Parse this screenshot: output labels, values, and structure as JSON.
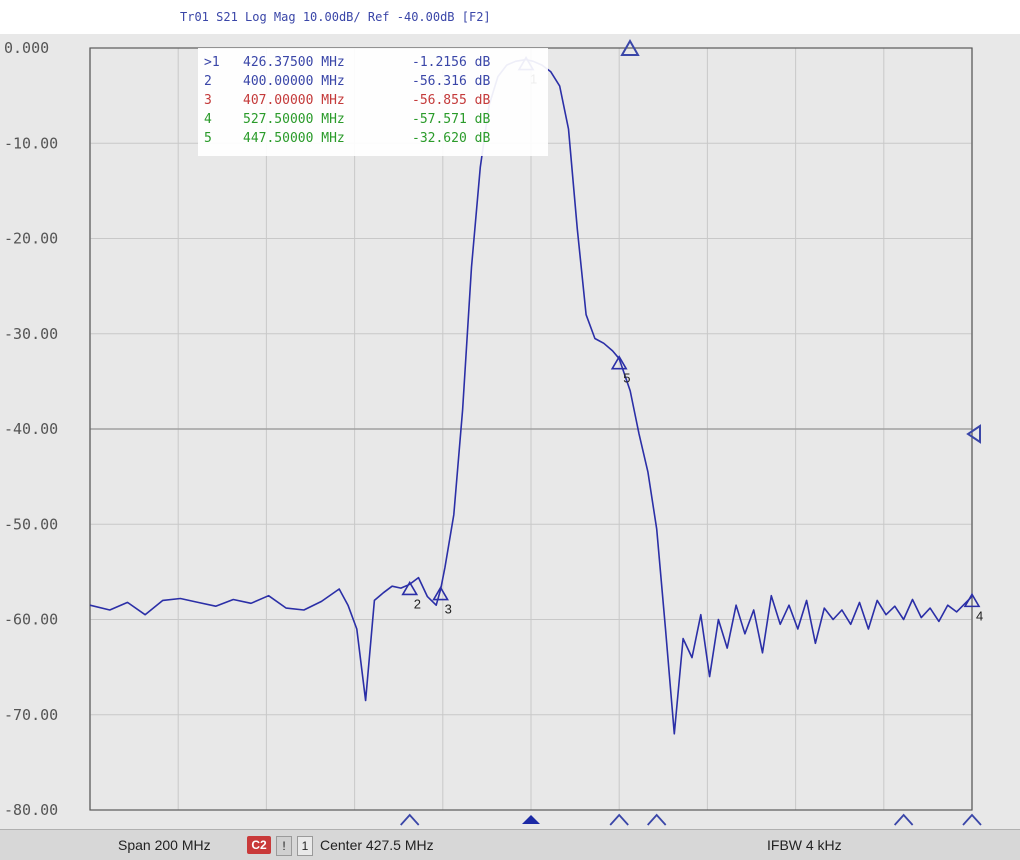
{
  "title": "Tr01 S21 Log Mag 10.00dB/ Ref -40.00dB [F2]",
  "y_axis": {
    "ticks": [
      "0.000",
      "-10.00",
      "-20.00",
      "-30.00",
      "-40.00",
      "-50.00",
      "-60.00",
      "-70.00",
      "-80.00"
    ]
  },
  "markers": [
    {
      "id": ">1",
      "freq": "426.37500 MHz",
      "value": "-1.2156 dB"
    },
    {
      "id": "2",
      "freq": "400.00000 MHz",
      "value": "-56.316 dB"
    },
    {
      "id": "3",
      "freq": "407.00000 MHz",
      "value": "-56.855 dB"
    },
    {
      "id": "4",
      "freq": "527.50000 MHz",
      "value": "-57.571 dB"
    },
    {
      "id": "5",
      "freq": "447.50000 MHz",
      "value": "-32.620 dB"
    }
  ],
  "marker_labels_on_trace": [
    "1",
    "2",
    "3",
    "4",
    "5"
  ],
  "status": {
    "span": "Span 200 MHz",
    "c2": "C2",
    "warn": "!",
    "one": "1",
    "center": "Center 427.5 MHz",
    "ifbw": "IFBW 4 kHz"
  },
  "colors": {
    "trace": "#2b2fa7",
    "grid": "#c8c8c8",
    "axis": "#5a5a5a",
    "marker_blue": "#3a46a8",
    "marker_red": "#c43a3a",
    "marker_green": "#2a9b2a"
  },
  "chart_data": {
    "type": "line",
    "title": "Tr01 S21 Log Mag 10.00dB/ Ref -40.00dB [F2]",
    "xlabel": "",
    "ylabel": "",
    "xlim": [
      327.5,
      527.5
    ],
    "ylim": [
      -80,
      0
    ],
    "grid": true,
    "series": [
      {
        "name": "",
        "x": [
          327.5,
          332,
          336,
          340,
          344,
          348,
          352,
          356,
          360,
          364,
          368,
          372,
          376,
          380,
          384,
          386,
          388,
          390,
          392,
          394,
          396,
          398,
          400,
          402,
          404,
          406,
          407,
          408,
          410,
          412,
          414,
          416,
          418,
          420,
          422,
          424,
          426.375,
          428,
          430,
          432,
          434,
          436,
          438,
          440,
          442,
          444,
          446,
          447.5,
          450,
          452,
          454,
          456,
          458,
          460,
          462,
          464,
          466,
          468,
          470,
          472,
          474,
          476,
          478,
          480,
          482,
          484,
          486,
          488,
          490,
          492,
          494,
          496,
          498,
          500,
          502,
          504,
          506,
          508,
          510,
          512,
          514,
          516,
          518,
          520,
          522,
          524,
          527.5
        ],
        "y": [
          -58.5,
          -59.0,
          -58.2,
          -59.5,
          -58.0,
          -57.8,
          -58.2,
          -58.6,
          -57.9,
          -58.3,
          -57.5,
          -58.8,
          -59.0,
          -58.1,
          -56.8,
          -58.5,
          -61.0,
          -68.5,
          -58.0,
          -57.2,
          -56.5,
          -56.7,
          -56.3,
          -55.6,
          -57.6,
          -58.5,
          -56.85,
          -54.5,
          -49.0,
          -38.0,
          -23.0,
          -12.5,
          -6.0,
          -3.0,
          -1.8,
          -1.4,
          -1.2156,
          -1.4,
          -1.8,
          -2.5,
          -4.0,
          -8.5,
          -19.0,
          -28.0,
          -30.5,
          -31.0,
          -31.8,
          -32.62,
          -36.0,
          -40.5,
          -44.5,
          -50.5,
          -61.0,
          -72.0,
          -62.0,
          -64.0,
          -59.5,
          -66.0,
          -60.0,
          -63.0,
          -58.5,
          -61.5,
          -59.0,
          -63.5,
          -57.5,
          -60.5,
          -58.5,
          -61.0,
          -58.0,
          -62.5,
          -58.8,
          -60.0,
          -59.0,
          -60.5,
          -58.2,
          -61.0,
          -58.0,
          -59.5,
          -58.6,
          -60.0,
          -57.9,
          -59.8,
          -58.8,
          -60.2,
          -58.5,
          -59.2,
          -57.57
        ]
      }
    ]
  }
}
